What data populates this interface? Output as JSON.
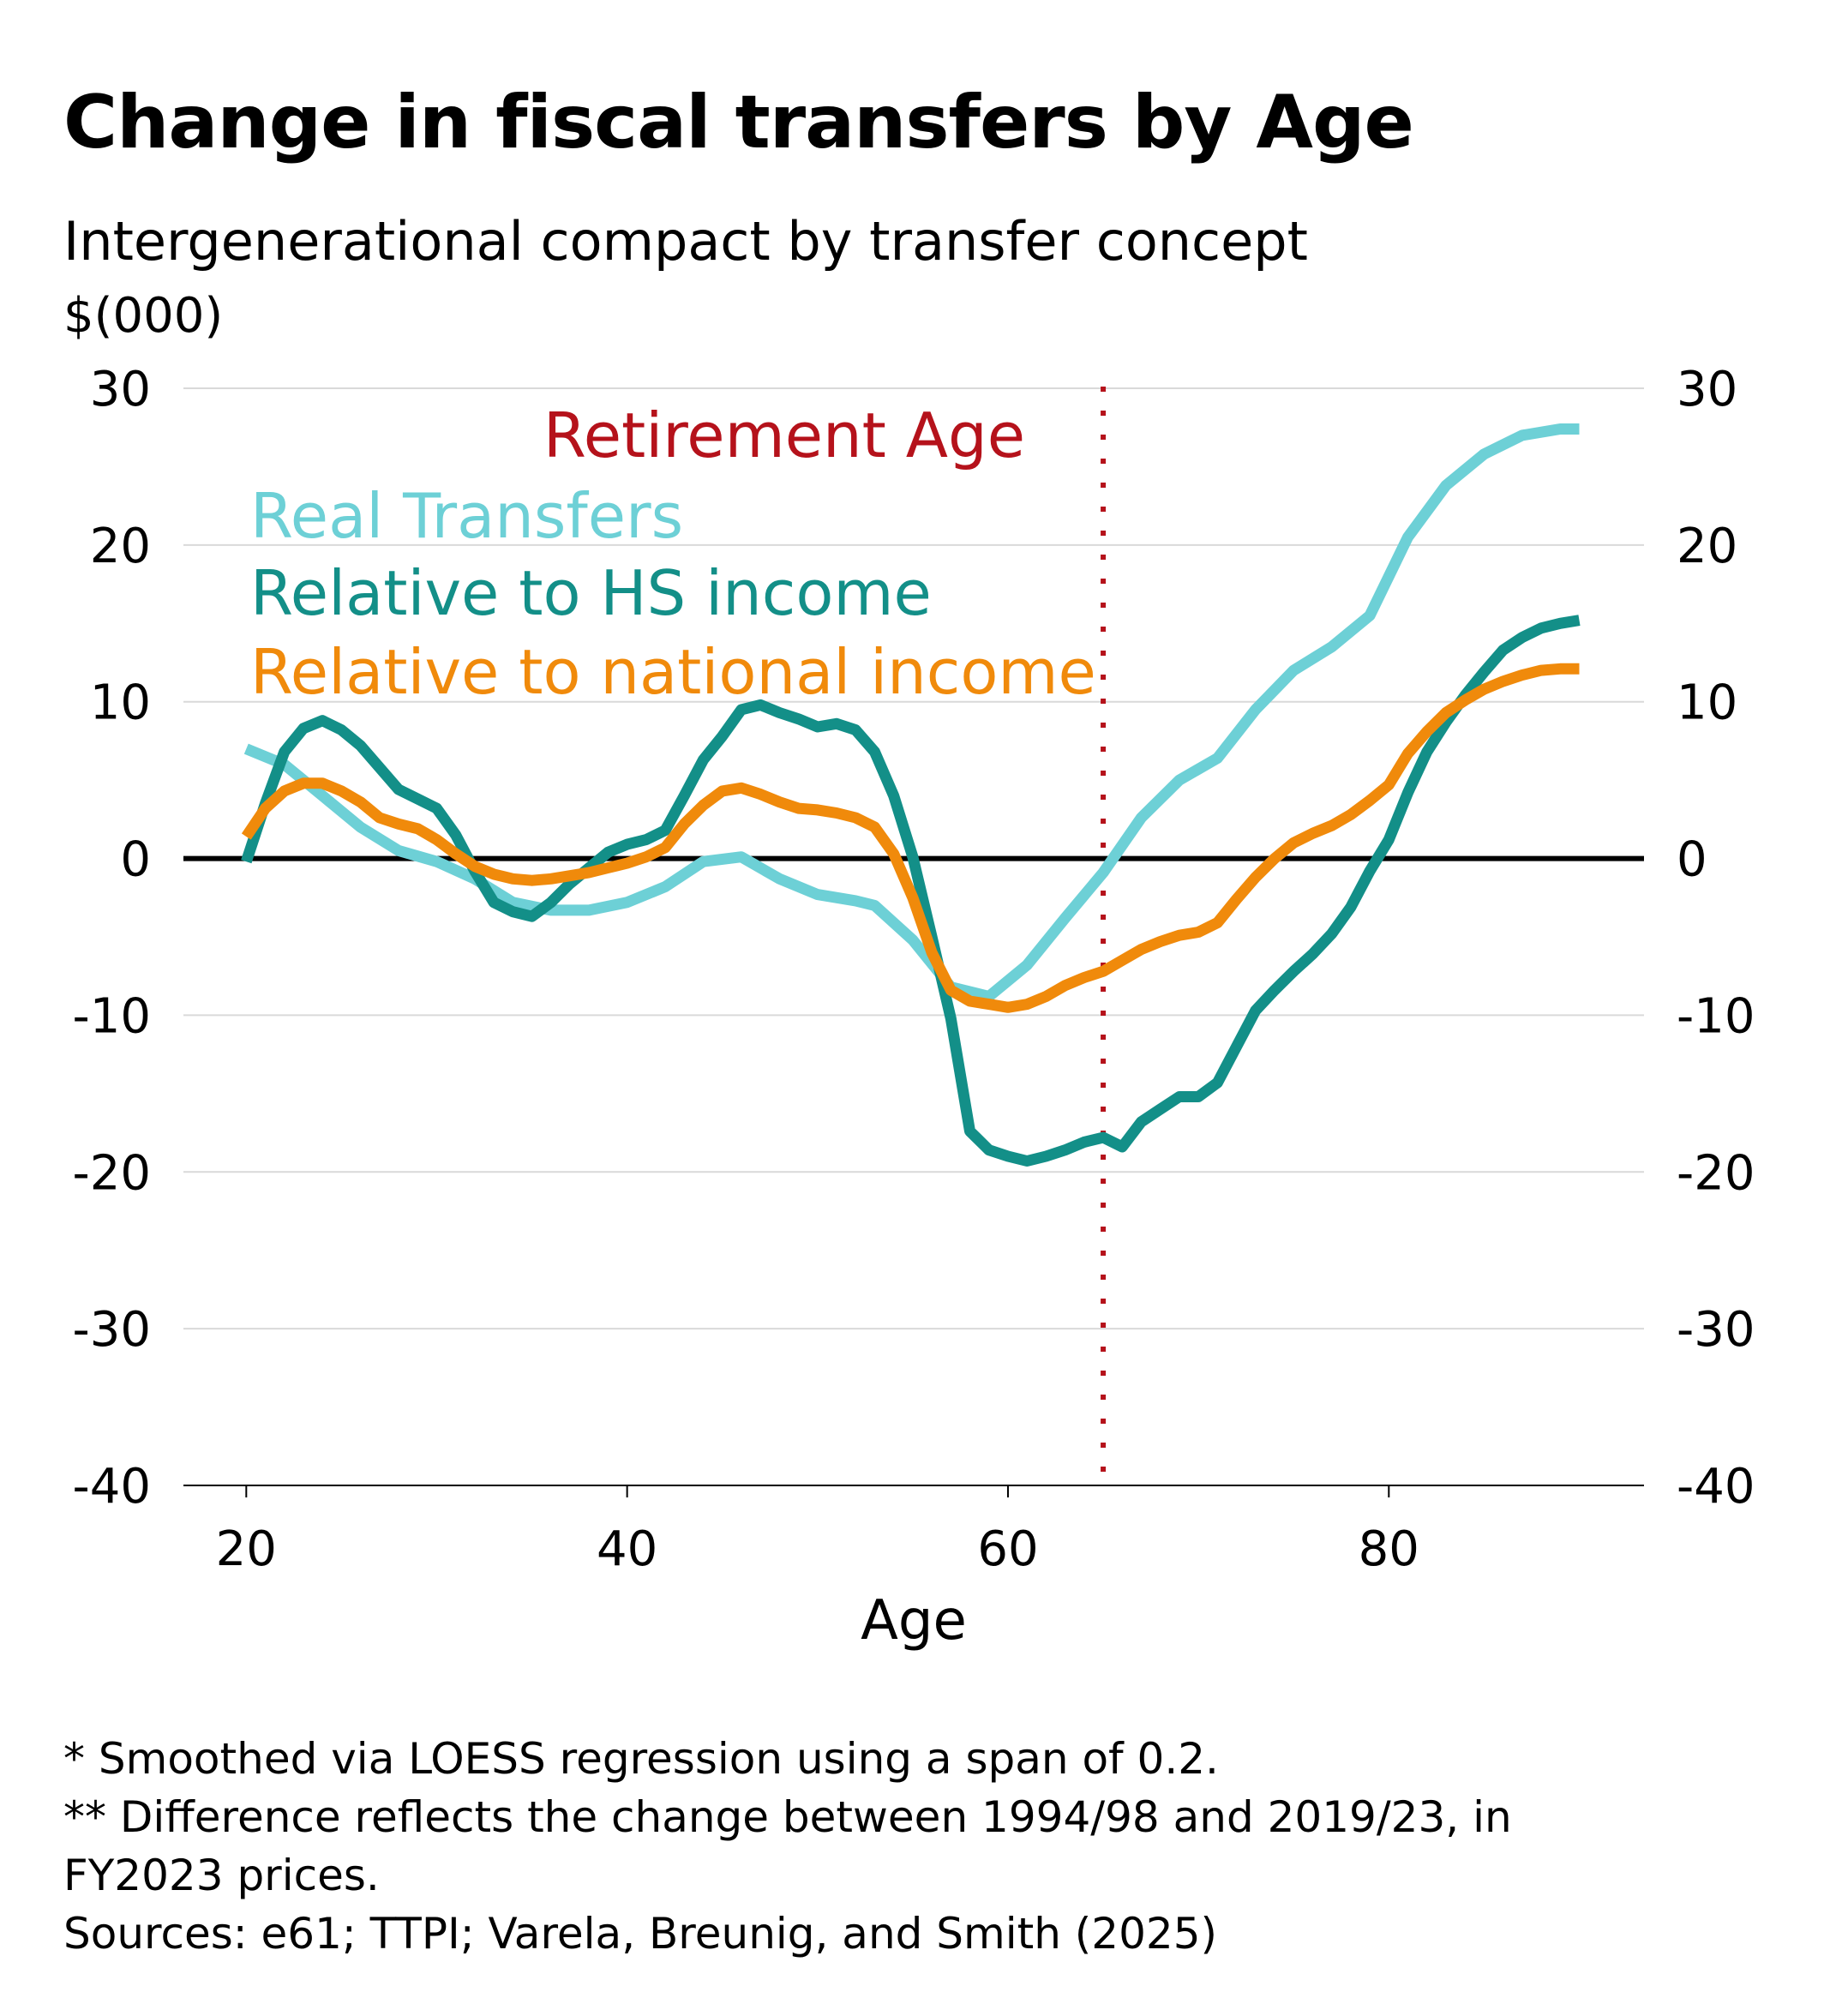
{
  "title": "Change in fiscal transfers by Age",
  "subtitle": "Intergenerational compact by transfer concept",
  "units": "$(000)",
  "footnotes": [
    "* Smoothed via LOESS regression using a span of 0.2.",
    "** Difference reflects the change between 1994/98 and 2019/23, in",
    "FY2023 prices.",
    "Sources: e61; TTPI; Varela, Breunig, and Smith (2025)"
  ],
  "chart_data": {
    "type": "line",
    "title": "Change in fiscal transfers by Age",
    "xlabel": "Age",
    "ylabel": "$(000)",
    "xlim": [
      16.7,
      93.4
    ],
    "ylim": [
      -40,
      30
    ],
    "x_ticks": [
      "20",
      "40",
      "60",
      "80"
    ],
    "y_ticks": [
      "30",
      "20",
      "10",
      "0",
      "-10",
      "-20",
      "-30",
      "-40"
    ],
    "grid": true,
    "zero_line": true,
    "secondary_y_axis": true,
    "annotations": [
      {
        "text": "Retirement Age",
        "x": 65,
        "color": "#b5121b",
        "style": "dotted-vertical-line"
      }
    ],
    "series": [
      {
        "name": "Real Transfers",
        "color": "#6dd0d6",
        "x": [
          20,
          22,
          24,
          26,
          28,
          30,
          32,
          34,
          36,
          38,
          40,
          42,
          44,
          46,
          48,
          50,
          52,
          53,
          55,
          57,
          59,
          61,
          63,
          65,
          67,
          69,
          71,
          73,
          75,
          77,
          79,
          81,
          83,
          85,
          87,
          89,
          90
        ],
        "y": [
          7,
          6,
          4,
          2,
          0.5,
          -0.2,
          -1.3,
          -2.8,
          -3.3,
          -3.3,
          -2.8,
          -1.8,
          -0.2,
          0.1,
          -1.3,
          -2.3,
          -2.7,
          -3,
          -5.2,
          -8.2,
          -8.8,
          -6.8,
          -3.8,
          -0.9,
          2.6,
          5,
          6.4,
          9.5,
          12,
          13.5,
          15.5,
          20.5,
          23.8,
          25.8,
          27,
          27.4,
          27.4
        ]
      },
      {
        "name": "Relative to HS income",
        "color": "#138f88",
        "x": [
          20,
          21,
          22,
          23,
          24,
          25,
          26,
          28,
          29,
          30,
          31,
          32,
          33,
          34,
          35,
          36,
          37,
          39,
          40,
          41,
          42,
          43,
          44,
          45,
          46,
          47,
          48,
          49,
          50,
          51,
          52,
          53,
          54,
          55,
          56,
          57,
          58,
          59,
          60,
          61,
          62,
          63,
          64,
          65,
          66,
          67,
          68,
          69,
          70,
          71,
          72,
          73,
          74,
          75,
          76,
          77,
          78,
          79,
          80,
          81,
          82,
          83,
          84,
          85,
          86,
          87,
          88,
          89,
          90
        ],
        "y": [
          -0.2,
          3.5,
          6.8,
          8.3,
          8.8,
          8.2,
          7.2,
          4.4,
          3.8,
          3.2,
          1.5,
          -0.8,
          -2.8,
          -3.4,
          -3.7,
          -2.8,
          -1.6,
          0.4,
          0.9,
          1.2,
          1.8,
          4,
          6.3,
          7.8,
          9.5,
          9.8,
          9.3,
          8.9,
          8.4,
          8.6,
          8.2,
          6.8,
          4,
          0.1,
          -5,
          -10.2,
          -17.4,
          -18.6,
          -19,
          -19.3,
          -19,
          -18.6,
          -18.1,
          -17.8,
          -18.4,
          -16.8,
          -16,
          -15.2,
          -15.2,
          -14.3,
          -12,
          -9.7,
          -8.4,
          -7.2,
          -6.1,
          -4.8,
          -3.1,
          -0.8,
          1.2,
          4.2,
          6.8,
          8.7,
          10.4,
          11.9,
          13.3,
          14.1,
          14.7,
          15,
          15.2
        ]
      },
      {
        "name": "Relative to national income",
        "color": "#f08a0b",
        "x": [
          20,
          21,
          22,
          23,
          24,
          25,
          26,
          27,
          28,
          29,
          30,
          31,
          32,
          33,
          34,
          35,
          36,
          37,
          38,
          39,
          40,
          41,
          42,
          43,
          44,
          45,
          46,
          47,
          48,
          49,
          50,
          51,
          52,
          53,
          54,
          55,
          56,
          57,
          58,
          59,
          60,
          61,
          62,
          63,
          64,
          65,
          66,
          67,
          68,
          69,
          70,
          71,
          72,
          73,
          74,
          75,
          76,
          77,
          78,
          79,
          80,
          81,
          82,
          83,
          84,
          85,
          86,
          87,
          88,
          89,
          90
        ],
        "y": [
          1.4,
          3.2,
          4.3,
          4.8,
          4.8,
          4.3,
          3.6,
          2.6,
          2.2,
          1.9,
          1.2,
          0.3,
          -0.5,
          -1,
          -1.3,
          -1.4,
          -1.3,
          -1.1,
          -0.9,
          -0.6,
          -0.3,
          0.1,
          0.7,
          2.2,
          3.4,
          4.3,
          4.5,
          4.1,
          3.6,
          3.2,
          3.1,
          2.9,
          2.6,
          2,
          0.3,
          -2.5,
          -6,
          -8.4,
          -9.1,
          -9.3,
          -9.5,
          -9.3,
          -8.8,
          -8.1,
          -7.6,
          -7.2,
          -6.5,
          -5.8,
          -5.3,
          -4.9,
          -4.7,
          -4.1,
          -2.6,
          -1.2,
          0,
          1,
          1.6,
          2.1,
          2.8,
          3.7,
          4.7,
          6.7,
          8.1,
          9.3,
          10.1,
          10.8,
          11.3,
          11.7,
          12,
          12.1,
          12.1
        ]
      }
    ]
  }
}
